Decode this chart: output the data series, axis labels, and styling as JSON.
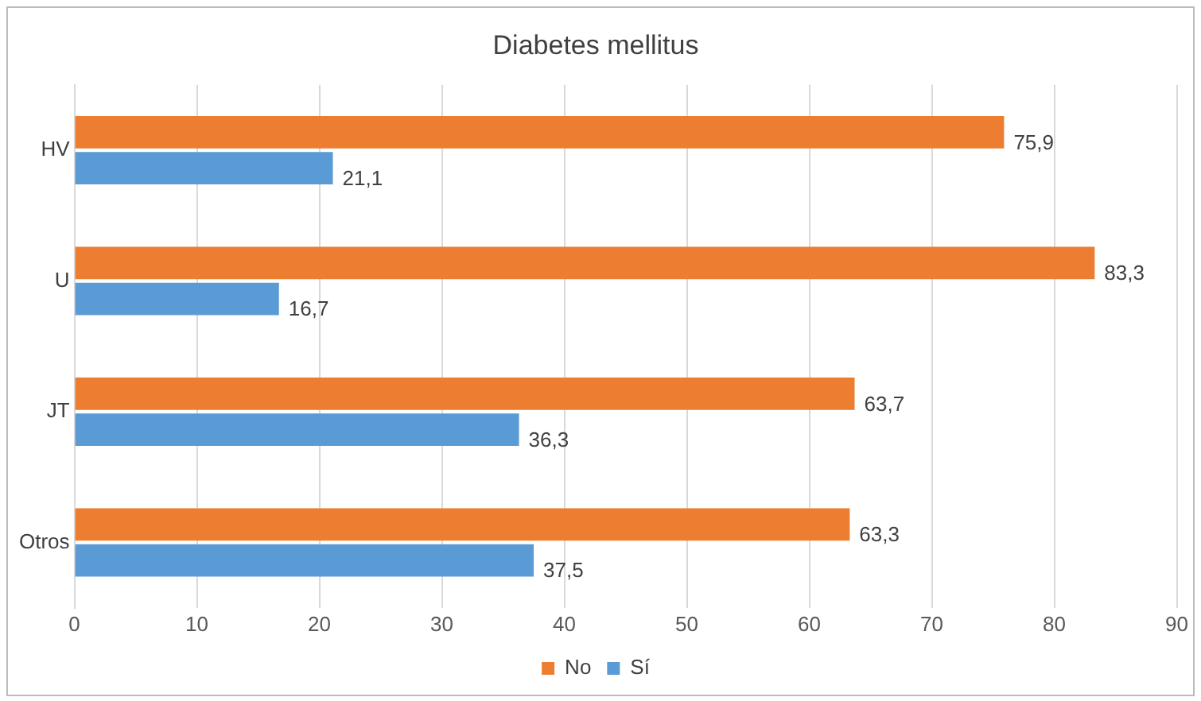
{
  "chart_data": {
    "type": "bar",
    "orientation": "horizontal",
    "title": "Diabetes mellitus",
    "categories": [
      "HV",
      "U",
      "JT",
      "Otros"
    ],
    "series": [
      {
        "name": "No",
        "color": "#ed7d31",
        "values": [
          75.9,
          83.3,
          63.7,
          63.3
        ],
        "value_labels": [
          "75,9",
          "83,3",
          "63,7",
          "63,3"
        ]
      },
      {
        "name": "Sí",
        "color": "#5b9bd5",
        "values": [
          21.1,
          16.7,
          36.3,
          37.5
        ],
        "value_labels": [
          "21,1",
          "16,7",
          "36,3",
          "37,5"
        ]
      }
    ],
    "xlim": [
      0,
      90
    ],
    "xticks": [
      0,
      10,
      20,
      30,
      40,
      50,
      60,
      70,
      80,
      90
    ],
    "grid": "x",
    "legend": "bottom"
  }
}
